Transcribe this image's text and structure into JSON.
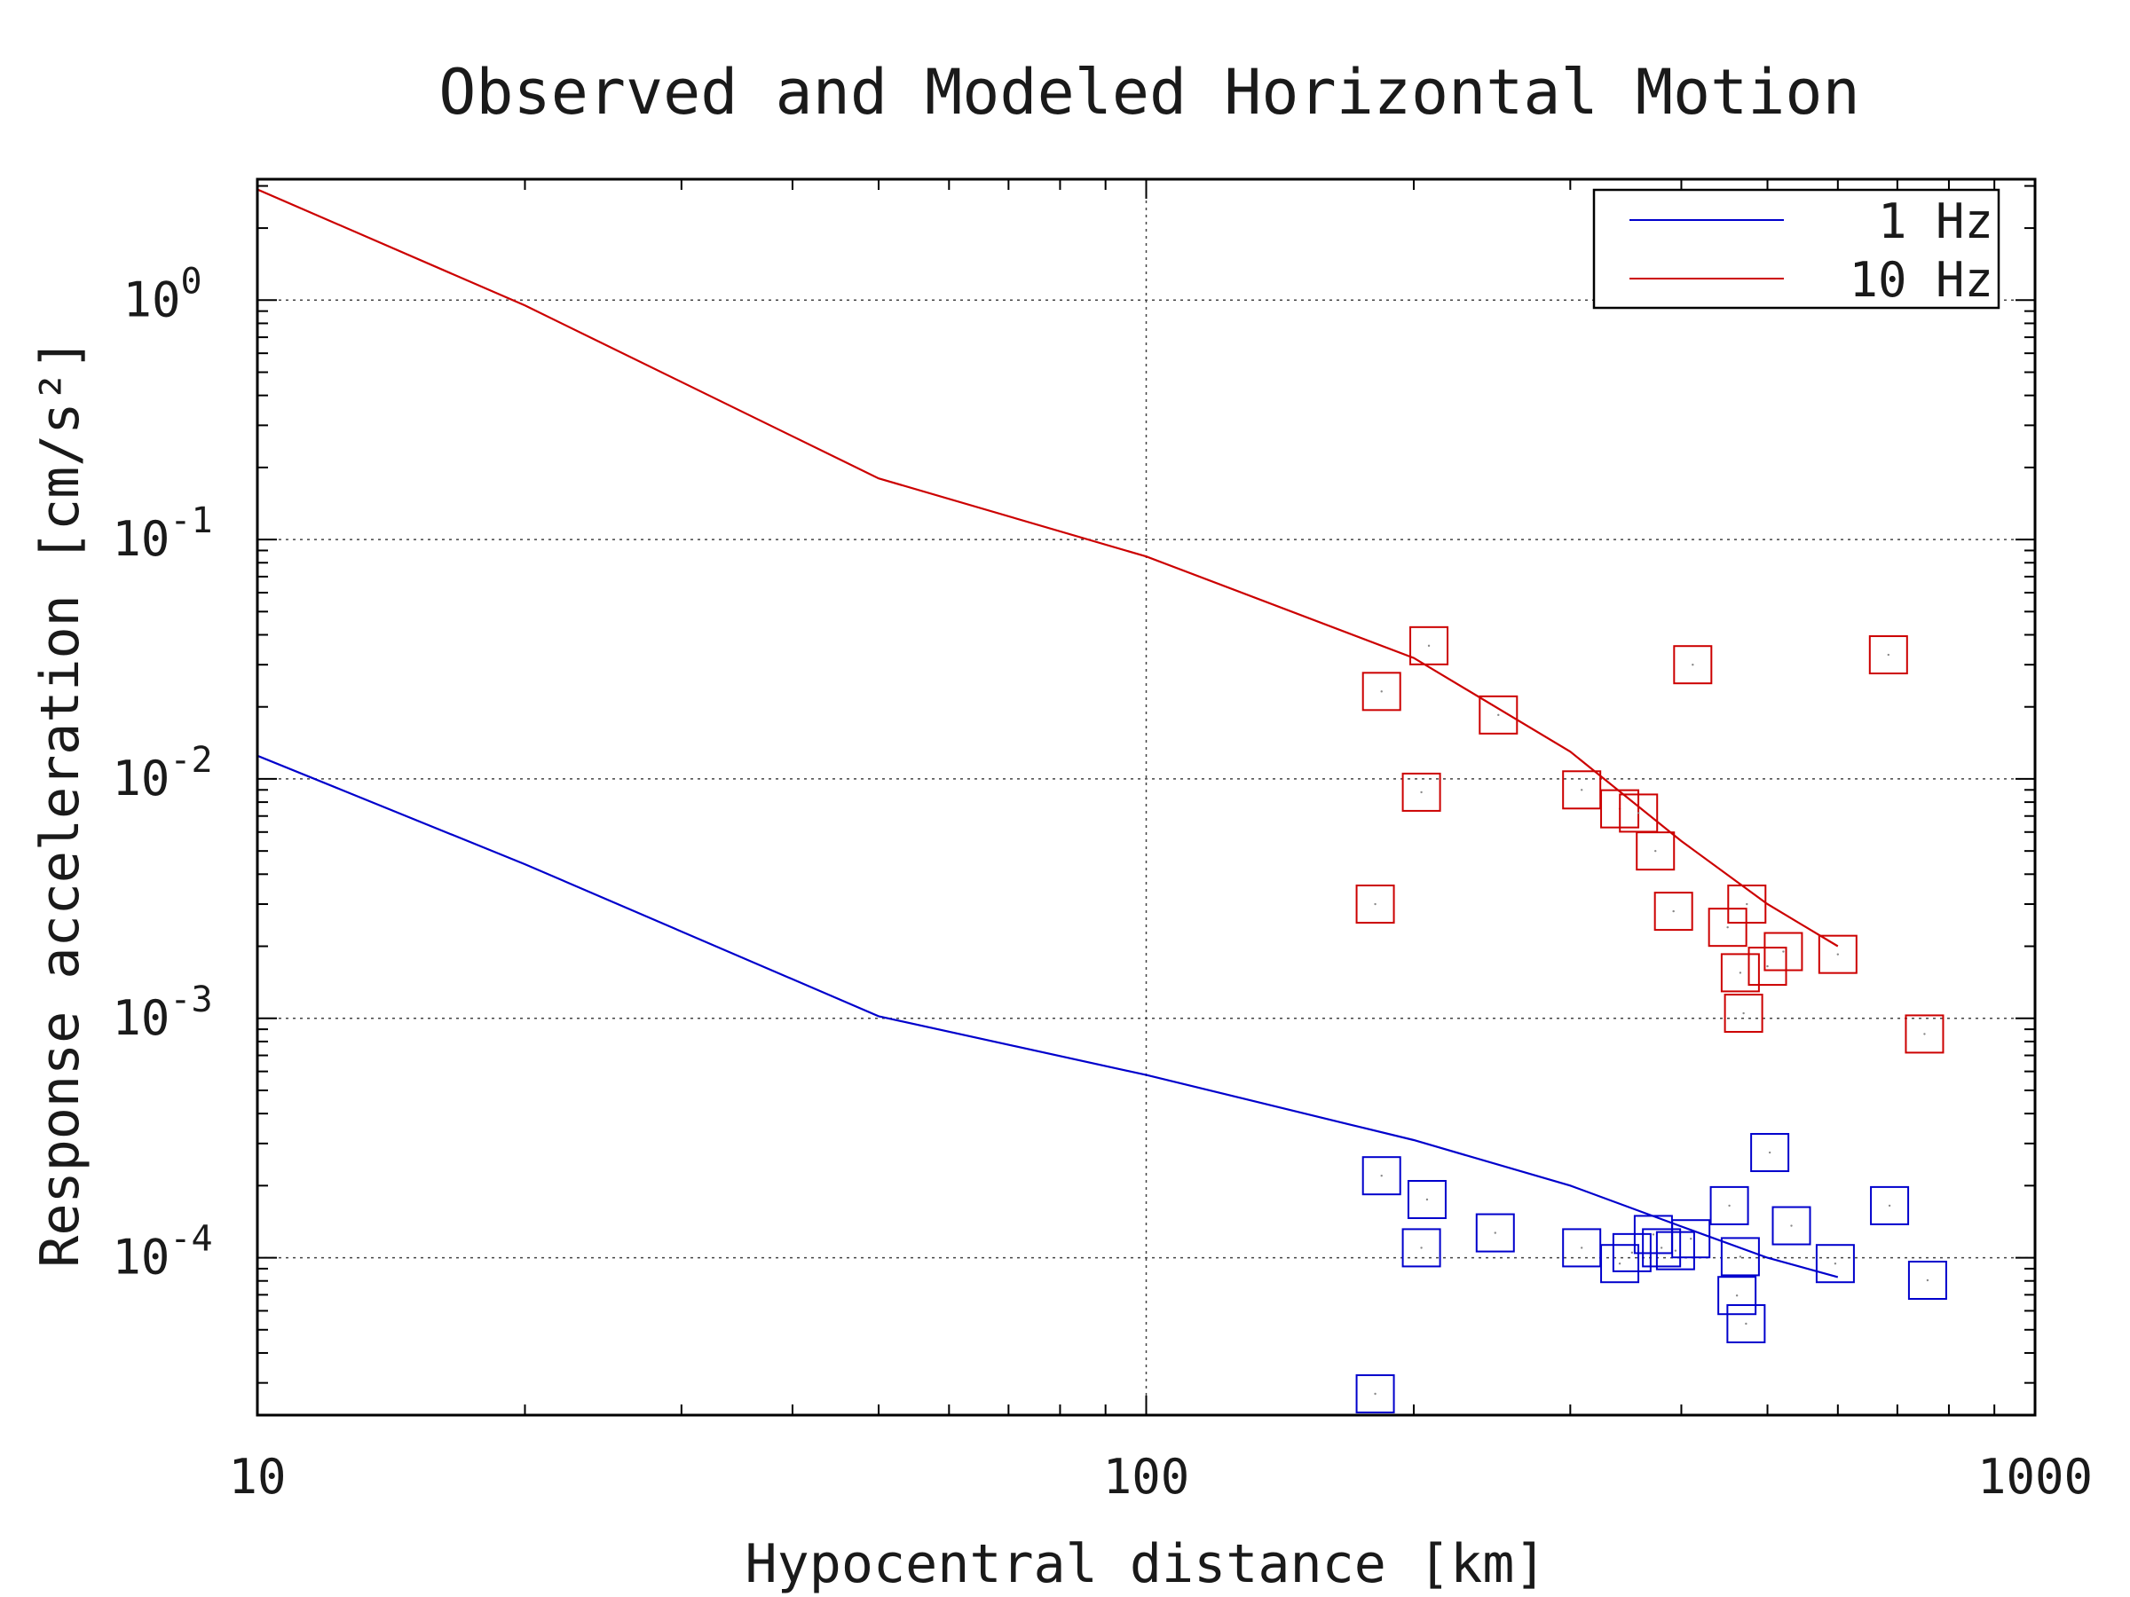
{
  "chart_data": {
    "type": "line",
    "title": "Observed and Modeled Horizontal Motion",
    "xlabel": "Hypocentral distance [km]",
    "ylabel": "Response acceleration [cm/s²]",
    "x_scale": "log",
    "y_scale": "log",
    "xlim": [
      10,
      1000
    ],
    "ylim": [
      2.2e-05,
      3.2
    ],
    "grid": true,
    "legend_position": "top-right",
    "x_ticks": [
      {
        "value": 10,
        "label": "10"
      },
      {
        "value": 100,
        "label": "100"
      },
      {
        "value": 1000,
        "label": "1000"
      }
    ],
    "y_ticks": [
      {
        "value": 1,
        "base": "10",
        "exp": "0"
      },
      {
        "value": 0.1,
        "base": "10",
        "exp": "-1"
      },
      {
        "value": 0.01,
        "base": "10",
        "exp": "-2"
      },
      {
        "value": 0.001,
        "base": "10",
        "exp": "-3"
      },
      {
        "value": 0.0001,
        "base": "10",
        "exp": "-4"
      }
    ],
    "series": [
      {
        "name": "1 Hz",
        "color": "#0000cc",
        "line": {
          "x": [
            10,
            20,
            50,
            100,
            200,
            300,
            400,
            500,
            600
          ],
          "y": [
            0.0125,
            0.0044,
            0.00102,
            0.00058,
            0.00031,
            0.0002,
            0.000135,
            0.0001,
            8.3e-05
          ]
        },
        "observed": {
          "x": [
            181,
            184,
            204,
            207,
            247,
            309,
            341,
            352,
            372,
            380,
            394,
            410,
            453,
            462,
            466,
            473,
            503,
            532,
            596,
            686,
            757
          ],
          "y": [
            2.7e-05,
            0.00022,
            0.00011,
            0.000175,
            0.000127,
            0.00011,
            9.45e-05,
            0.000105,
            0.000125,
            0.00011,
            0.000107,
            0.00012,
            0.000165,
            6.95e-05,
            0.000101,
            5.3e-05,
            0.000275,
            0.000136,
            9.45e-05,
            0.000165,
            8.05e-05
          ]
        }
      },
      {
        "name": "10 Hz",
        "color": "#cc0000",
        "line": {
          "x": [
            10,
            20,
            50,
            100,
            200,
            300,
            400,
            500,
            600
          ],
          "y": [
            2.9,
            0.95,
            0.18,
            0.085,
            0.032,
            0.013,
            0.0055,
            0.003,
            0.002
          ]
        },
        "observed": {
          "x": [
            181,
            184,
            204,
            208,
            249,
            309,
            341,
            358,
            374,
            392,
            412,
            451,
            466,
            470,
            474,
            500,
            521,
            600,
            684,
            751
          ],
          "y": [
            0.003,
            0.0232,
            0.0088,
            0.036,
            0.0185,
            0.009,
            0.0075,
            0.0072,
            0.005,
            0.0028,
            0.03,
            0.0024,
            0.00155,
            0.00105,
            0.003,
            0.00165,
            0.0019,
            0.00185,
            0.033,
            0.00086
          ]
        }
      }
    ]
  }
}
